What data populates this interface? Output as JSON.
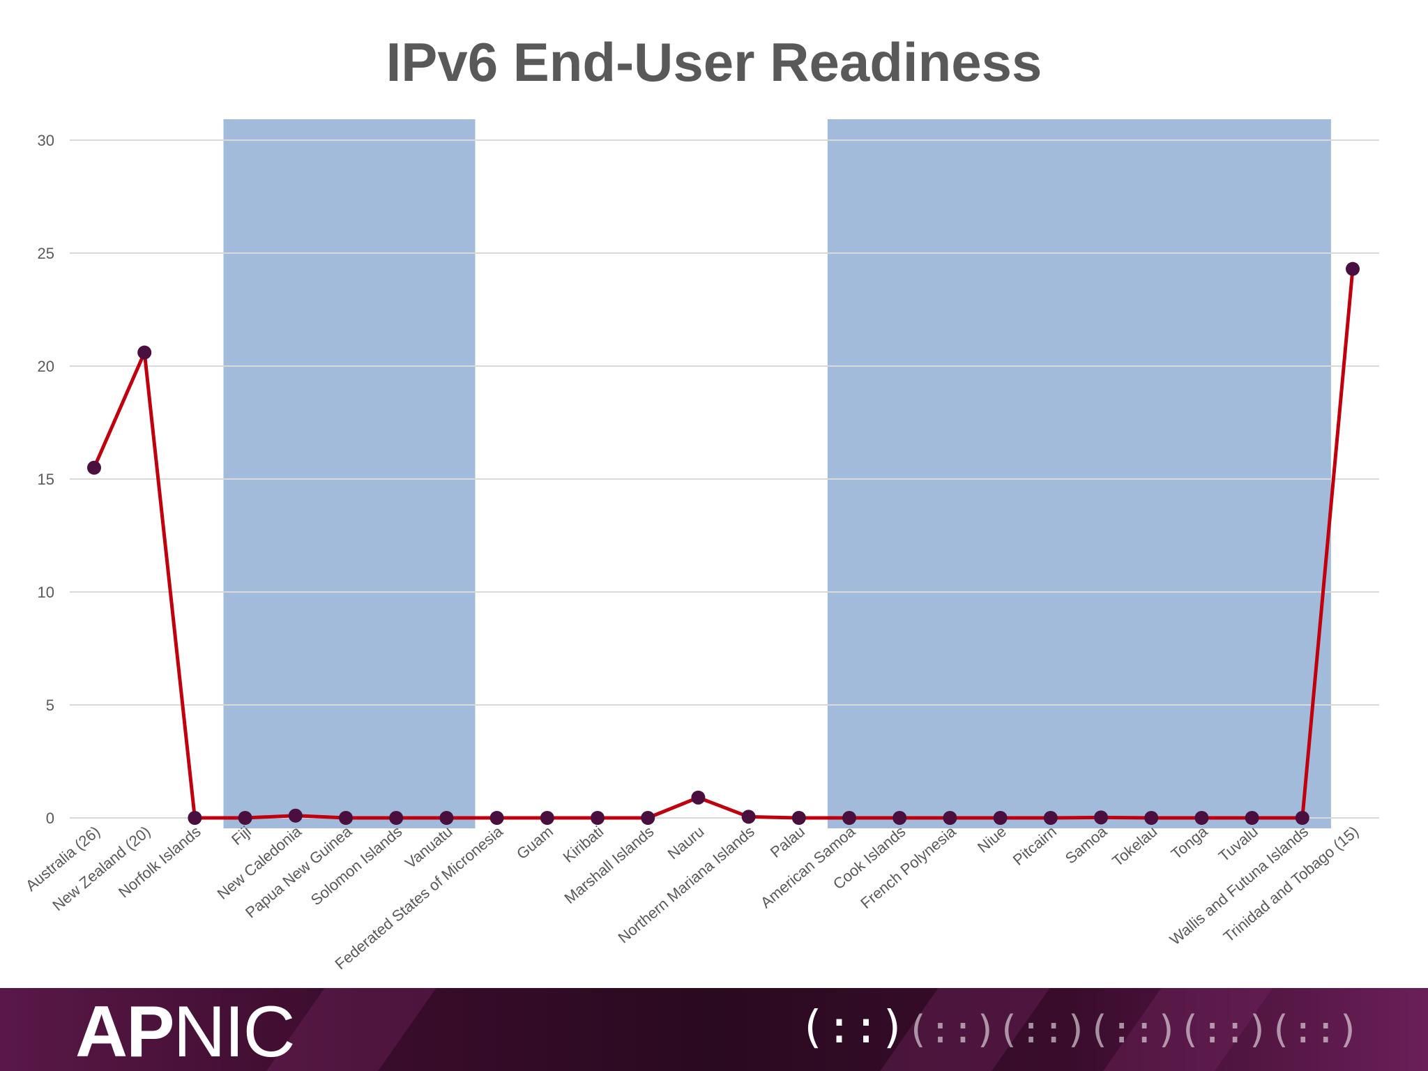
{
  "slide": {
    "title": "IPv6 End-User Readiness",
    "brand_bold": "AP",
    "brand_rest": "NIC",
    "glyph_main": "(::)",
    "glyph_trail": "(::)(::)(::)(::)(::)"
  },
  "colors": {
    "line": "#c0000c",
    "marker": "#4a0f3e",
    "band": "#a2bbdb",
    "grid": "#d9d9d9",
    "text": "#595959",
    "footer": "#3a0c2c"
  },
  "chart_data": {
    "type": "line",
    "categories": [
      "Australia (26)",
      "New Zealand (20)",
      "Norfolk Islands",
      "Fiji",
      "New Caledonia",
      "Papua New Guinea",
      "Solomon Islands",
      "Vanuatu",
      "Federated States of Micronesia",
      "Guam",
      "Kiribati",
      "Marshall Islands",
      "Nauru",
      "Northern Mariana Islands",
      "Palau",
      "American Samoa",
      "Cook Islands",
      "French Polynesia",
      "Niue",
      "Pitcairn",
      "Samoa",
      "Tokelau",
      "Tonga",
      "Tuvalu",
      "Wallis and Futuna Islands",
      "Trinidad and Tobago (15)"
    ],
    "series": [
      {
        "values": [
          15.5,
          20.6,
          0,
          0,
          0.1,
          0,
          0,
          0,
          0,
          0,
          0,
          0,
          0.9,
          0.05,
          0,
          0,
          0,
          0,
          0,
          0,
          0.02,
          0,
          0,
          0,
          0,
          24.3
        ]
      }
    ],
    "ylim": [
      0,
      30
    ],
    "yticks": [
      0,
      5,
      10,
      15,
      20,
      25,
      30
    ],
    "grid": true,
    "highlight_bands": [
      {
        "from": "Fiji",
        "to": "Vanuatu"
      },
      {
        "from": "American Samoa",
        "to": "Wallis and Futuna Islands"
      }
    ],
    "xlabel": "",
    "ylabel": ""
  }
}
